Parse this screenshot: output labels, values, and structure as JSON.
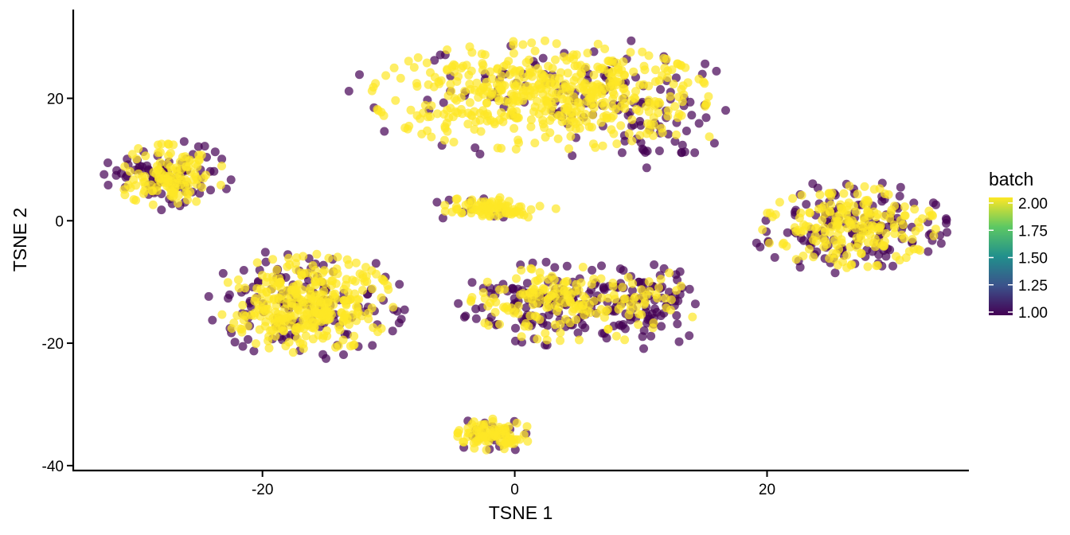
{
  "chart_data": {
    "type": "scatter",
    "title": "",
    "xlabel": "TSNE 1",
    "ylabel": "TSNE 2",
    "xlim": [
      -35,
      36
    ],
    "ylim": [
      -40.8,
      34.5
    ],
    "xticks": [
      -20,
      0,
      20
    ],
    "yticks": [
      -40,
      -20,
      0,
      20
    ],
    "grid": false,
    "color_variable": "batch",
    "colorscale": "viridis",
    "color_range": [
      1.0,
      2.0
    ],
    "colorbar_ticks": [
      "1.00",
      "1.25",
      "1.50",
      "1.75",
      "2.00"
    ],
    "colors": {
      "batch_1": "#440154",
      "batch_2": "#FDE725",
      "axis": "#000000",
      "background": "#FFFFFF"
    },
    "point_opacity": 0.7,
    "legend_placement": "right",
    "clusters": [
      {
        "cx": 2.0,
        "cy": 20.5,
        "sx": 6.6,
        "sy": 4.4,
        "n": 560,
        "batch2_fraction": 0.82
      },
      {
        "cx": 10.5,
        "cy": 16.0,
        "sx": 2.6,
        "sy": 3.2,
        "n": 70,
        "batch2_fraction": 0.15
      },
      {
        "cx": -27.5,
        "cy": 7.5,
        "sx": 2.2,
        "sy": 2.5,
        "n": 200,
        "batch2_fraction": 0.62
      },
      {
        "cx": -2.0,
        "cy": 2.0,
        "sx": 2.6,
        "sy": 0.9,
        "n": 90,
        "batch2_fraction": 0.9
      },
      {
        "cx": -16.5,
        "cy": -13.5,
        "sx": 3.4,
        "sy": 4.0,
        "n": 460,
        "batch2_fraction": 0.7
      },
      {
        "cx": 3.8,
        "cy": -13.5,
        "sx": 3.6,
        "sy": 3.0,
        "n": 300,
        "batch2_fraction": 0.55
      },
      {
        "cx": 10.5,
        "cy": -14.0,
        "sx": 2.0,
        "sy": 3.0,
        "n": 100,
        "batch2_fraction": 0.25
      },
      {
        "cx": 26.5,
        "cy": -1.0,
        "sx": 3.4,
        "sy": 3.3,
        "n": 330,
        "batch2_fraction": 0.55
      },
      {
        "cx": -1.5,
        "cy": -35.0,
        "sx": 1.5,
        "sy": 1.3,
        "n": 110,
        "batch2_fraction": 0.85
      }
    ],
    "annotations": []
  }
}
